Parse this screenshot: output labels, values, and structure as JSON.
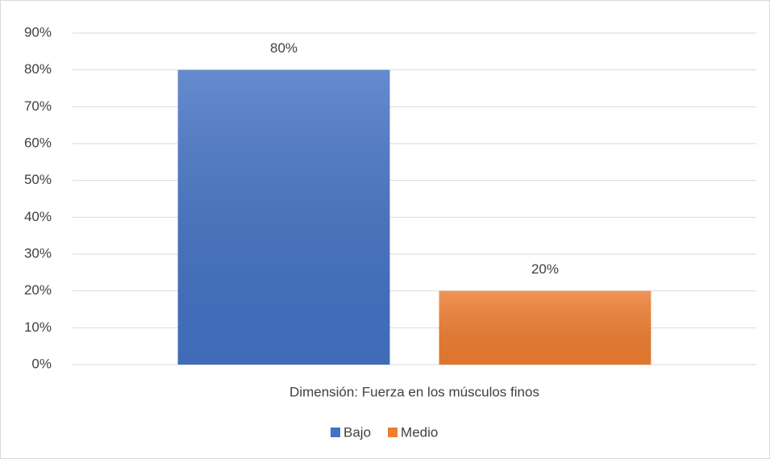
{
  "chart_data": {
    "type": "bar",
    "categories": [
      "Dimensión: Fuerza en los músculos finos"
    ],
    "series": [
      {
        "name": "Bajo",
        "color": "#4472c4",
        "values": [
          80
        ],
        "value_labels": [
          "80%"
        ]
      },
      {
        "name": "Medio",
        "color": "#ed7d31",
        "values": [
          20
        ],
        "value_labels": [
          "20%"
        ]
      }
    ],
    "ylim": [
      0,
      90
    ],
    "yticks": [
      {
        "value": 0,
        "label": "0%"
      },
      {
        "value": 10,
        "label": "10%"
      },
      {
        "value": 20,
        "label": "20%"
      },
      {
        "value": 30,
        "label": "30%"
      },
      {
        "value": 40,
        "label": "40%"
      },
      {
        "value": 50,
        "label": "50%"
      },
      {
        "value": 60,
        "label": "60%"
      },
      {
        "value": 70,
        "label": "70%"
      },
      {
        "value": 80,
        "label": "80%"
      },
      {
        "value": 90,
        "label": "90%"
      }
    ],
    "grid": true,
    "legend": "bottom"
  }
}
